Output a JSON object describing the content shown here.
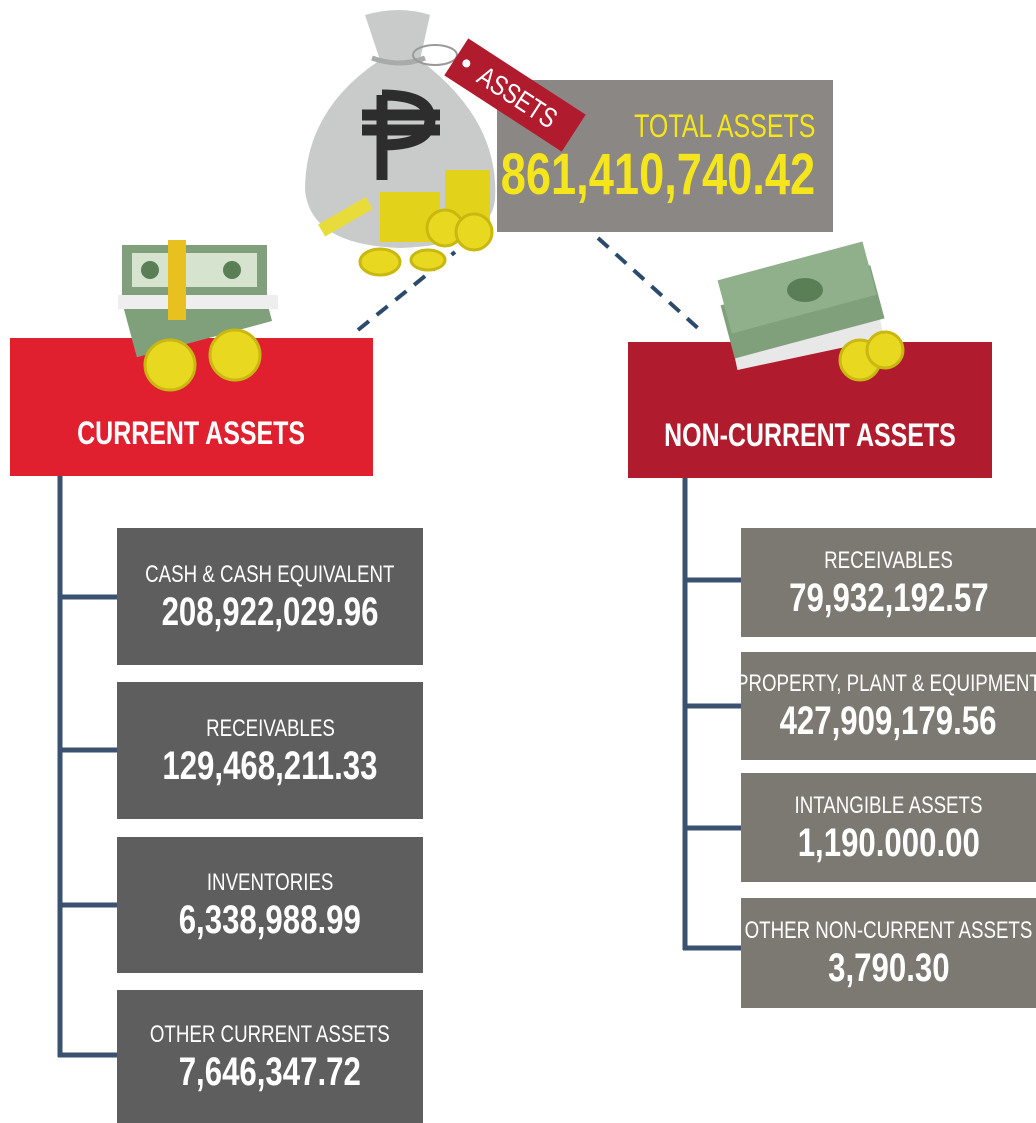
{
  "tag": "ASSETS",
  "total": {
    "label": "TOTAL ASSETS",
    "value": "861,410,740.42"
  },
  "current": {
    "title": "CURRENT ASSETS",
    "items": [
      {
        "label": "CASH & CASH EQUIVALENT",
        "value": "208,922,029.96"
      },
      {
        "label": "RECEIVABLES",
        "value": "129,468,211.33"
      },
      {
        "label": "INVENTORIES",
        "value": "6,338,988.99"
      },
      {
        "label": "OTHER CURRENT ASSETS",
        "value": "7,646,347.72"
      }
    ]
  },
  "non_current": {
    "title": "NON-CURRENT ASSETS",
    "items": [
      {
        "label": "RECEIVABLES",
        "value": "79,932,192.57"
      },
      {
        "label": "PROPERTY, PLANT & EQUIPMENT",
        "value": "427,909,179.56"
      },
      {
        "label": "INTANGIBLE ASSETS",
        "value": "1,190.000.00"
      },
      {
        "label": "OTHER NON-CURRENT ASSETS",
        "value": "3,790.30"
      }
    ]
  }
}
